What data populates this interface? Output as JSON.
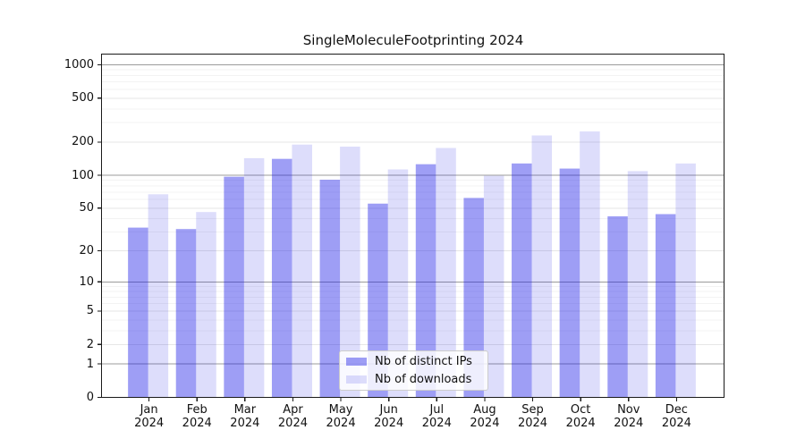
{
  "chart_data": {
    "type": "bar",
    "title": "SingleMoleculeFootprinting 2024",
    "categories": [
      "Jan 2024",
      "Feb 2024",
      "Mar 2024",
      "Apr 2024",
      "May 2024",
      "Jun 2024",
      "Jul 2024",
      "Aug 2024",
      "Sep 2024",
      "Oct 2024",
      "Nov 2024",
      "Dec 2024"
    ],
    "series": [
      {
        "name": "Nb of distinct IPs",
        "color": "rgba(25,25,230,0.42)",
        "values": [
          33,
          32,
          97,
          141,
          91,
          55,
          126,
          62,
          128,
          115,
          42,
          44
        ]
      },
      {
        "name": "Nb of downloads",
        "color": "rgba(25,25,230,0.15)",
        "values": [
          67,
          46,
          143,
          190,
          182,
          113,
          177,
          99,
          230,
          250,
          109,
          128
        ]
      }
    ],
    "yscale": "log1p",
    "ylim": [
      0,
      1275
    ],
    "yticks": [
      0,
      1,
      2,
      5,
      10,
      20,
      50,
      100,
      200,
      500,
      1000
    ],
    "emphasized_gridlines": [
      1,
      10,
      100,
      1000
    ],
    "minor_gridlines": [
      3,
      4,
      6,
      7,
      8,
      9,
      30,
      40,
      60,
      70,
      80,
      90,
      300,
      400,
      600,
      700,
      800,
      900
    ],
    "grid": true,
    "legend_position": "lower center",
    "xlabel": "",
    "ylabel": ""
  },
  "colors": {
    "grid_minor": "#f3f3f3",
    "grid_major": "#e6e6e6",
    "grid_emphasized": "#9b9b9b",
    "spine": "#1a1a1a",
    "tick": "#1a1a1a",
    "text": "#111111"
  }
}
